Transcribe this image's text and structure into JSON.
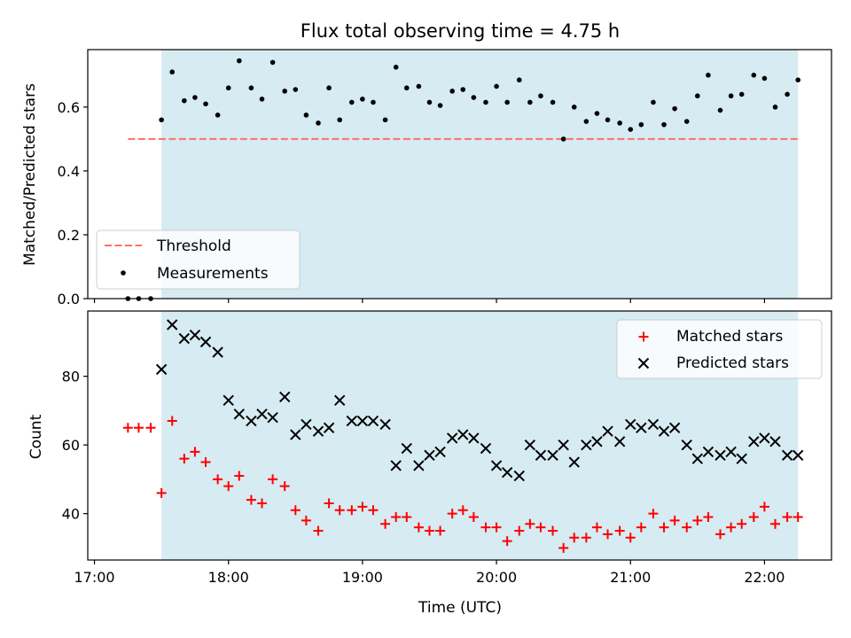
{
  "figure": {
    "title": "Flux total observing time = 4.75 h",
    "xlabel": "Time (UTC)"
  },
  "colors": {
    "shade": "#add8e6",
    "threshold": "#ff6e6e",
    "measurement": "#000000",
    "matched": "#ff0000",
    "predicted": "#000000"
  },
  "chart_data": [
    {
      "type": "scatter",
      "panel": "top",
      "title": "Flux total observing time = 4.75 h",
      "ylabel": "Matched/Predicted stars",
      "xlim": [
        16.95,
        22.5
      ],
      "ylim": [
        0.0,
        0.78
      ],
      "yticks": [
        0.0,
        0.2,
        0.4,
        0.6
      ],
      "ytick_labels": [
        "0.0",
        "0.2",
        "0.4",
        "0.6"
      ],
      "observing_window": [
        17.5,
        22.25
      ],
      "threshold": {
        "name": "Threshold",
        "x": [
          17.25,
          22.25
        ],
        "y": 0.5
      },
      "legend": {
        "placement": "lower-left",
        "entries": [
          "Threshold",
          "Measurements"
        ]
      },
      "series": [
        {
          "name": "Measurements",
          "x": [
            17.25,
            17.33,
            17.42,
            17.5,
            17.58,
            17.67,
            17.75,
            17.83,
            17.92,
            18.0,
            18.08,
            18.17,
            18.25,
            18.33,
            18.42,
            18.5,
            18.58,
            18.67,
            18.75,
            18.83,
            18.92,
            19.0,
            19.08,
            19.17,
            19.25,
            19.33,
            19.42,
            19.5,
            19.58,
            19.67,
            19.75,
            19.83,
            19.92,
            20.0,
            20.08,
            20.17,
            20.25,
            20.33,
            20.42,
            20.5,
            20.58,
            20.67,
            20.75,
            20.83,
            20.92,
            21.0,
            21.08,
            21.17,
            21.25,
            21.33,
            21.42,
            21.5,
            21.58,
            21.67,
            21.75,
            21.83,
            21.92,
            22.0,
            22.08,
            22.17,
            22.25
          ],
          "y": [
            0.0,
            0.0,
            0.0,
            0.56,
            0.71,
            0.62,
            0.63,
            0.61,
            0.575,
            0.66,
            0.745,
            0.66,
            0.625,
            0.74,
            0.65,
            0.655,
            0.575,
            0.55,
            0.66,
            0.56,
            0.615,
            0.625,
            0.615,
            0.56,
            0.725,
            0.66,
            0.665,
            0.615,
            0.605,
            0.65,
            0.655,
            0.63,
            0.615,
            0.665,
            0.615,
            0.685,
            0.615,
            0.635,
            0.615,
            0.5,
            0.6,
            0.555,
            0.58,
            0.56,
            0.55,
            0.53,
            0.545,
            0.615,
            0.545,
            0.595,
            0.555,
            0.635,
            0.7,
            0.59,
            0.635,
            0.64,
            0.7,
            0.69,
            0.6,
            0.64,
            0.685
          ]
        }
      ]
    },
    {
      "type": "scatter",
      "panel": "bottom",
      "xlabel": "Time (UTC)",
      "ylabel": "Count",
      "xlim": [
        16.95,
        22.5
      ],
      "ylim": [
        26.5,
        99.0
      ],
      "xticks": [
        17,
        18,
        19,
        20,
        21,
        22
      ],
      "xtick_labels": [
        "17:00",
        "18:00",
        "19:00",
        "20:00",
        "21:00",
        "22:00"
      ],
      "yticks": [
        40,
        60,
        80
      ],
      "ytick_labels": [
        "40",
        "60",
        "80"
      ],
      "observing_window": [
        17.5,
        22.25
      ],
      "legend": {
        "placement": "upper-right",
        "entries": [
          "Matched stars",
          "Predicted stars"
        ]
      },
      "series": [
        {
          "name": "Matched stars",
          "marker": "plus",
          "x": [
            17.25,
            17.33,
            17.42,
            17.5,
            17.58,
            17.67,
            17.75,
            17.83,
            17.92,
            18.0,
            18.08,
            18.17,
            18.25,
            18.33,
            18.42,
            18.5,
            18.58,
            18.67,
            18.75,
            18.83,
            18.92,
            19.0,
            19.08,
            19.17,
            19.25,
            19.33,
            19.42,
            19.5,
            19.58,
            19.67,
            19.75,
            19.83,
            19.92,
            20.0,
            20.08,
            20.17,
            20.25,
            20.33,
            20.42,
            20.5,
            20.58,
            20.67,
            20.75,
            20.83,
            20.92,
            21.0,
            21.08,
            21.17,
            21.25,
            21.33,
            21.42,
            21.5,
            21.58,
            21.67,
            21.75,
            21.83,
            21.92,
            22.0,
            22.08,
            22.17,
            22.25
          ],
          "y": [
            65,
            65,
            65,
            46,
            67,
            56,
            58,
            55,
            50,
            48,
            51,
            44,
            43,
            50,
            48,
            41,
            38,
            35,
            43,
            41,
            41,
            42,
            41,
            37,
            39,
            39,
            36,
            35,
            35,
            40,
            41,
            39,
            36,
            36,
            32,
            35,
            37,
            36,
            35,
            30,
            33,
            33,
            36,
            34,
            35,
            33,
            36,
            40,
            36,
            38,
            36,
            38,
            39,
            34,
            36,
            37,
            39,
            42,
            37,
            39,
            39
          ]
        },
        {
          "name": "Predicted stars",
          "marker": "x",
          "x": [
            17.5,
            17.58,
            17.67,
            17.75,
            17.83,
            17.92,
            18.0,
            18.08,
            18.17,
            18.25,
            18.33,
            18.42,
            18.5,
            18.58,
            18.67,
            18.75,
            18.83,
            18.92,
            19.0,
            19.08,
            19.17,
            19.25,
            19.33,
            19.42,
            19.5,
            19.58,
            19.67,
            19.75,
            19.83,
            19.92,
            20.0,
            20.08,
            20.17,
            20.25,
            20.33,
            20.42,
            20.5,
            20.58,
            20.67,
            20.75,
            20.83,
            20.92,
            21.0,
            21.08,
            21.17,
            21.25,
            21.33,
            21.42,
            21.5,
            21.58,
            21.67,
            21.75,
            21.83,
            21.92,
            22.0,
            22.08,
            22.17,
            22.25
          ],
          "y": [
            82,
            95,
            91,
            92,
            90,
            87,
            73,
            69,
            67,
            69,
            68,
            74,
            63,
            66,
            64,
            65,
            73,
            67,
            67,
            67,
            66,
            54,
            59,
            54,
            57,
            58,
            62,
            63,
            62,
            59,
            54,
            52,
            51,
            60,
            57,
            57,
            60,
            55,
            60,
            61,
            64,
            61,
            66,
            65,
            66,
            64,
            65,
            60,
            56,
            58,
            57,
            58,
            56,
            61,
            62,
            61,
            57,
            57
          ]
        }
      ]
    }
  ]
}
